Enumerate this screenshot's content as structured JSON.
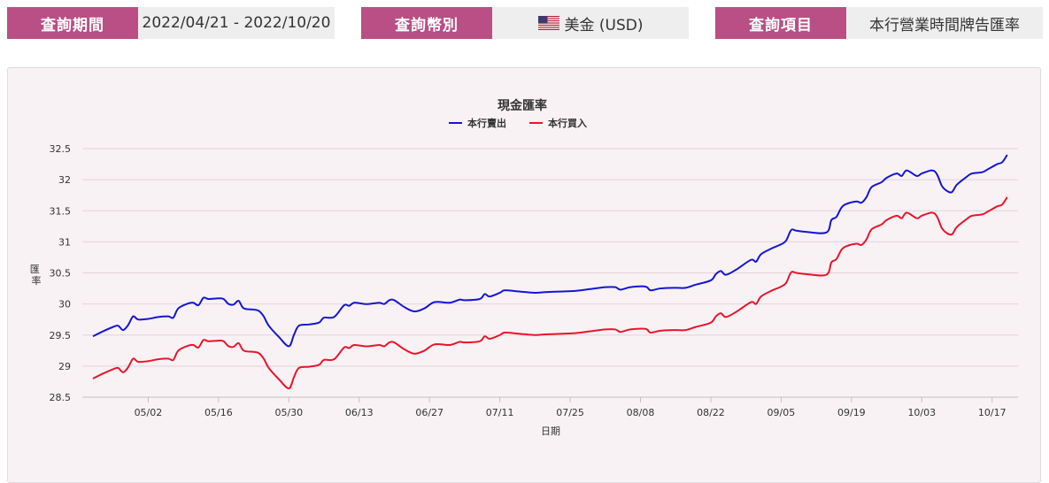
{
  "query": {
    "period_label": "查詢期間",
    "period_value": "2022/04/21 - 2022/10/20",
    "currency_label": "查詢幣別",
    "currency_value": "美金 (USD)",
    "currency_flag_icon": "us-flag-icon",
    "item_label": "查詢項目",
    "item_value": "本行營業時間牌告匯率"
  },
  "colors": {
    "accent": "#b94f85",
    "sell_series": "#1515d6",
    "buy_series": "#e8152b"
  },
  "chart_data": {
    "type": "line",
    "title": "現金匯率",
    "xlabel": "日期",
    "ylabel": "匯率",
    "ylim": [
      28.5,
      32.5
    ],
    "yticks": [
      "28.5",
      "29",
      "29.5",
      "30",
      "30.5",
      "31",
      "31.5",
      "32",
      "32.5"
    ],
    "xticks": [
      "05/02",
      "05/16",
      "05/30",
      "06/13",
      "06/27",
      "07/11",
      "07/25",
      "08/08",
      "08/22",
      "09/05",
      "09/19",
      "10/03",
      "10/17"
    ],
    "legend_position": "top-center",
    "grid": true,
    "x_start": "2022-04-21",
    "x_end": "2022-10-20",
    "series": [
      {
        "name": "本行賣出",
        "color": "#1515d6",
        "points": [
          [
            "2022-04-21",
            29.48
          ],
          [
            "2022-04-23",
            29.56
          ],
          [
            "2022-04-25",
            29.63
          ],
          [
            "2022-04-26",
            29.65
          ],
          [
            "2022-04-27",
            29.58
          ],
          [
            "2022-04-28",
            29.66
          ],
          [
            "2022-04-29",
            29.8
          ],
          [
            "2022-04-30",
            29.75
          ],
          [
            "2022-05-02",
            29.76
          ],
          [
            "2022-05-04",
            29.79
          ],
          [
            "2022-05-06",
            29.8
          ],
          [
            "2022-05-07",
            29.78
          ],
          [
            "2022-05-08",
            29.93
          ],
          [
            "2022-05-10",
            30.01
          ],
          [
            "2022-05-11",
            30.02
          ],
          [
            "2022-05-12",
            29.98
          ],
          [
            "2022-05-13",
            30.1
          ],
          [
            "2022-05-14",
            30.08
          ],
          [
            "2022-05-16",
            30.09
          ],
          [
            "2022-05-17",
            30.08
          ],
          [
            "2022-05-18",
            30.0
          ],
          [
            "2022-05-19",
            29.99
          ],
          [
            "2022-05-20",
            30.05
          ],
          [
            "2022-05-21",
            29.93
          ],
          [
            "2022-05-23",
            29.91
          ],
          [
            "2022-05-24",
            29.89
          ],
          [
            "2022-05-25",
            29.8
          ],
          [
            "2022-05-26",
            29.65
          ],
          [
            "2022-05-28",
            29.47
          ],
          [
            "2022-05-30",
            29.32
          ],
          [
            "2022-05-31",
            29.5
          ],
          [
            "2022-06-01",
            29.65
          ],
          [
            "2022-06-03",
            29.67
          ],
          [
            "2022-06-05",
            29.7
          ],
          [
            "2022-06-06",
            29.78
          ],
          [
            "2022-06-08",
            29.79
          ],
          [
            "2022-06-10",
            29.98
          ],
          [
            "2022-06-11",
            29.97
          ],
          [
            "2022-06-12",
            30.02
          ],
          [
            "2022-06-14",
            30.0
          ],
          [
            "2022-06-15",
            30.0
          ],
          [
            "2022-06-17",
            30.02
          ],
          [
            "2022-06-18",
            30.0
          ],
          [
            "2022-06-19",
            30.06
          ],
          [
            "2022-06-20",
            30.06
          ],
          [
            "2022-06-22",
            29.95
          ],
          [
            "2022-06-24",
            29.88
          ],
          [
            "2022-06-26",
            29.93
          ],
          [
            "2022-06-28",
            30.03
          ],
          [
            "2022-07-01",
            30.02
          ],
          [
            "2022-07-03",
            30.07
          ],
          [
            "2022-07-04",
            30.06
          ],
          [
            "2022-07-07",
            30.08
          ],
          [
            "2022-07-08",
            30.16
          ],
          [
            "2022-07-09",
            30.12
          ],
          [
            "2022-07-11",
            30.18
          ],
          [
            "2022-07-12",
            30.22
          ],
          [
            "2022-07-15",
            30.2
          ],
          [
            "2022-07-18",
            30.18
          ],
          [
            "2022-07-20",
            30.19
          ],
          [
            "2022-07-23",
            30.2
          ],
          [
            "2022-07-26",
            30.21
          ],
          [
            "2022-07-29",
            30.24
          ],
          [
            "2022-08-01",
            30.27
          ],
          [
            "2022-08-03",
            30.27
          ],
          [
            "2022-08-04",
            30.23
          ],
          [
            "2022-08-06",
            30.27
          ],
          [
            "2022-08-09",
            30.28
          ],
          [
            "2022-08-10",
            30.22
          ],
          [
            "2022-08-12",
            30.25
          ],
          [
            "2022-08-15",
            30.26
          ],
          [
            "2022-08-17",
            30.26
          ],
          [
            "2022-08-19",
            30.31
          ],
          [
            "2022-08-22",
            30.38
          ],
          [
            "2022-08-23",
            30.48
          ],
          [
            "2022-08-24",
            30.53
          ],
          [
            "2022-08-25",
            30.47
          ],
          [
            "2022-08-27",
            30.55
          ],
          [
            "2022-08-30",
            30.71
          ],
          [
            "2022-08-31",
            30.68
          ],
          [
            "2022-09-01",
            30.8
          ],
          [
            "2022-09-03",
            30.89
          ],
          [
            "2022-09-05",
            30.96
          ],
          [
            "2022-09-06",
            31.02
          ],
          [
            "2022-09-07",
            31.19
          ],
          [
            "2022-09-08",
            31.18
          ],
          [
            "2022-09-10",
            31.16
          ],
          [
            "2022-09-14",
            31.15
          ],
          [
            "2022-09-15",
            31.35
          ],
          [
            "2022-09-16",
            31.4
          ],
          [
            "2022-09-17",
            31.55
          ],
          [
            "2022-09-18",
            31.61
          ],
          [
            "2022-09-20",
            31.65
          ],
          [
            "2022-09-21",
            31.63
          ],
          [
            "2022-09-22",
            31.72
          ],
          [
            "2022-09-23",
            31.88
          ],
          [
            "2022-09-25",
            31.96
          ],
          [
            "2022-09-26",
            32.03
          ],
          [
            "2022-09-28",
            32.1
          ],
          [
            "2022-09-29",
            32.06
          ],
          [
            "2022-09-30",
            32.15
          ],
          [
            "2022-10-02",
            32.06
          ],
          [
            "2022-10-03",
            32.1
          ],
          [
            "2022-10-05",
            32.15
          ],
          [
            "2022-10-06",
            32.09
          ],
          [
            "2022-10-07",
            31.9
          ],
          [
            "2022-10-08",
            31.82
          ],
          [
            "2022-10-09",
            31.8
          ],
          [
            "2022-10-10",
            31.92
          ],
          [
            "2022-10-12",
            32.05
          ],
          [
            "2022-10-13",
            32.1
          ],
          [
            "2022-10-15",
            32.12
          ],
          [
            "2022-10-16",
            32.16
          ],
          [
            "2022-10-18",
            32.25
          ],
          [
            "2022-10-19",
            32.28
          ],
          [
            "2022-10-20",
            32.4
          ]
        ]
      },
      {
        "name": "本行買入",
        "color": "#e8152b",
        "points": [
          [
            "2022-04-21",
            28.8
          ],
          [
            "2022-04-23",
            28.88
          ],
          [
            "2022-04-25",
            28.95
          ],
          [
            "2022-04-26",
            28.97
          ],
          [
            "2022-04-27",
            28.9
          ],
          [
            "2022-04-28",
            28.98
          ],
          [
            "2022-04-29",
            29.12
          ],
          [
            "2022-04-30",
            29.07
          ],
          [
            "2022-05-02",
            29.08
          ],
          [
            "2022-05-04",
            29.11
          ],
          [
            "2022-05-06",
            29.12
          ],
          [
            "2022-05-07",
            29.1
          ],
          [
            "2022-05-08",
            29.25
          ],
          [
            "2022-05-10",
            29.33
          ],
          [
            "2022-05-11",
            29.34
          ],
          [
            "2022-05-12",
            29.3
          ],
          [
            "2022-05-13",
            29.42
          ],
          [
            "2022-05-14",
            29.4
          ],
          [
            "2022-05-16",
            29.41
          ],
          [
            "2022-05-17",
            29.4
          ],
          [
            "2022-05-18",
            29.32
          ],
          [
            "2022-05-19",
            29.31
          ],
          [
            "2022-05-20",
            29.37
          ],
          [
            "2022-05-21",
            29.25
          ],
          [
            "2022-05-23",
            29.23
          ],
          [
            "2022-05-24",
            29.21
          ],
          [
            "2022-05-25",
            29.12
          ],
          [
            "2022-05-26",
            28.97
          ],
          [
            "2022-05-28",
            28.79
          ],
          [
            "2022-05-30",
            28.64
          ],
          [
            "2022-05-31",
            28.82
          ],
          [
            "2022-06-01",
            28.97
          ],
          [
            "2022-06-03",
            28.99
          ],
          [
            "2022-06-05",
            29.02
          ],
          [
            "2022-06-06",
            29.1
          ],
          [
            "2022-06-08",
            29.11
          ],
          [
            "2022-06-10",
            29.3
          ],
          [
            "2022-06-11",
            29.29
          ],
          [
            "2022-06-12",
            29.34
          ],
          [
            "2022-06-14",
            29.32
          ],
          [
            "2022-06-15",
            29.32
          ],
          [
            "2022-06-17",
            29.34
          ],
          [
            "2022-06-18",
            29.32
          ],
          [
            "2022-06-19",
            29.38
          ],
          [
            "2022-06-20",
            29.38
          ],
          [
            "2022-06-22",
            29.27
          ],
          [
            "2022-06-24",
            29.2
          ],
          [
            "2022-06-26",
            29.25
          ],
          [
            "2022-06-28",
            29.35
          ],
          [
            "2022-07-01",
            29.34
          ],
          [
            "2022-07-03",
            29.39
          ],
          [
            "2022-07-04",
            29.38
          ],
          [
            "2022-07-07",
            29.4
          ],
          [
            "2022-07-08",
            29.48
          ],
          [
            "2022-07-09",
            29.44
          ],
          [
            "2022-07-11",
            29.5
          ],
          [
            "2022-07-12",
            29.54
          ],
          [
            "2022-07-15",
            29.52
          ],
          [
            "2022-07-18",
            29.5
          ],
          [
            "2022-07-20",
            29.51
          ],
          [
            "2022-07-23",
            29.52
          ],
          [
            "2022-07-26",
            29.53
          ],
          [
            "2022-07-29",
            29.56
          ],
          [
            "2022-08-01",
            29.59
          ],
          [
            "2022-08-03",
            29.59
          ],
          [
            "2022-08-04",
            29.55
          ],
          [
            "2022-08-06",
            29.59
          ],
          [
            "2022-08-09",
            29.6
          ],
          [
            "2022-08-10",
            29.54
          ],
          [
            "2022-08-12",
            29.57
          ],
          [
            "2022-08-15",
            29.58
          ],
          [
            "2022-08-17",
            29.58
          ],
          [
            "2022-08-19",
            29.63
          ],
          [
            "2022-08-22",
            29.7
          ],
          [
            "2022-08-23",
            29.8
          ],
          [
            "2022-08-24",
            29.85
          ],
          [
            "2022-08-25",
            29.79
          ],
          [
            "2022-08-27",
            29.87
          ],
          [
            "2022-08-30",
            30.03
          ],
          [
            "2022-08-31",
            30.0
          ],
          [
            "2022-09-01",
            30.12
          ],
          [
            "2022-09-03",
            30.21
          ],
          [
            "2022-09-05",
            30.28
          ],
          [
            "2022-09-06",
            30.34
          ],
          [
            "2022-09-07",
            30.51
          ],
          [
            "2022-09-08",
            30.5
          ],
          [
            "2022-09-10",
            30.48
          ],
          [
            "2022-09-14",
            30.47
          ],
          [
            "2022-09-15",
            30.67
          ],
          [
            "2022-09-16",
            30.72
          ],
          [
            "2022-09-17",
            30.87
          ],
          [
            "2022-09-18",
            30.93
          ],
          [
            "2022-09-20",
            30.97
          ],
          [
            "2022-09-21",
            30.95
          ],
          [
            "2022-09-22",
            31.04
          ],
          [
            "2022-09-23",
            31.2
          ],
          [
            "2022-09-25",
            31.28
          ],
          [
            "2022-09-26",
            31.35
          ],
          [
            "2022-09-28",
            31.42
          ],
          [
            "2022-09-29",
            31.38
          ],
          [
            "2022-09-30",
            31.47
          ],
          [
            "2022-10-02",
            31.38
          ],
          [
            "2022-10-03",
            31.42
          ],
          [
            "2022-10-05",
            31.47
          ],
          [
            "2022-10-06",
            31.41
          ],
          [
            "2022-10-07",
            31.22
          ],
          [
            "2022-10-08",
            31.14
          ],
          [
            "2022-10-09",
            31.12
          ],
          [
            "2022-10-10",
            31.24
          ],
          [
            "2022-10-12",
            31.37
          ],
          [
            "2022-10-13",
            31.42
          ],
          [
            "2022-10-15",
            31.44
          ],
          [
            "2022-10-16",
            31.48
          ],
          [
            "2022-10-18",
            31.57
          ],
          [
            "2022-10-19",
            31.6
          ],
          [
            "2022-10-20",
            31.72
          ]
        ]
      }
    ]
  }
}
